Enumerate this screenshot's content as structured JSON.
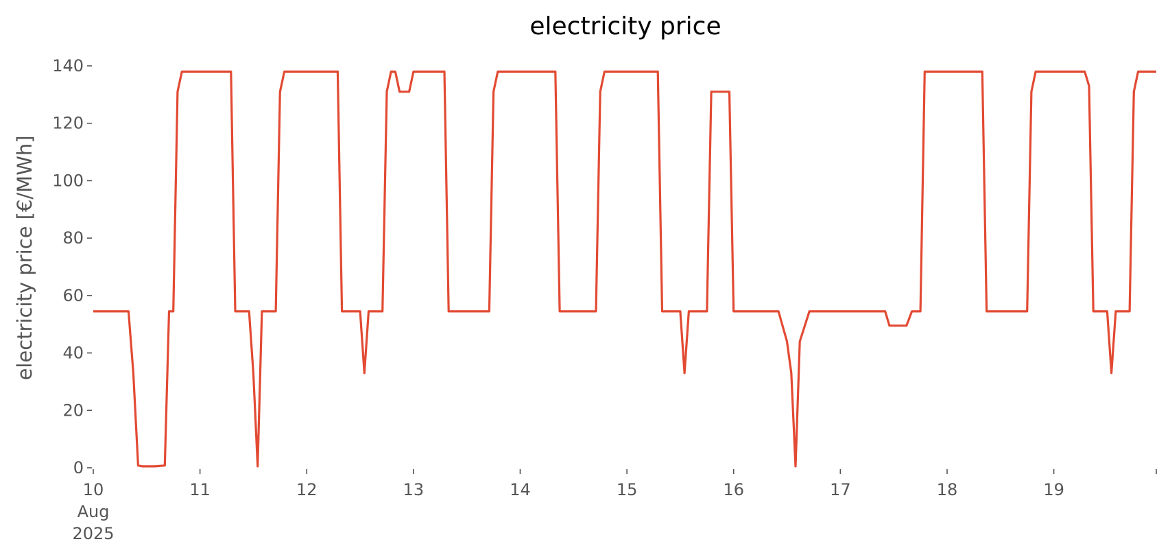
{
  "chart_data": {
    "type": "line",
    "title": "electricity price",
    "xlabel": "",
    "ylabel": "electricity price [€/MWh]",
    "x_unit": "day (August 2025, fractional)",
    "xlim": [
      10,
      19.96
    ],
    "ylim": [
      0,
      140
    ],
    "yticks": [
      0,
      20,
      40,
      60,
      80,
      100,
      120,
      140
    ],
    "xticks": [
      {
        "value": 10,
        "lines": [
          "10",
          "Aug",
          "2025"
        ]
      },
      {
        "value": 11,
        "lines": [
          "11"
        ]
      },
      {
        "value": 12,
        "lines": [
          "12"
        ]
      },
      {
        "value": 13,
        "lines": [
          "13"
        ]
      },
      {
        "value": 14,
        "lines": [
          "14"
        ]
      },
      {
        "value": 15,
        "lines": [
          "15"
        ]
      },
      {
        "value": 16,
        "lines": [
          "16"
        ]
      },
      {
        "value": 17,
        "lines": [
          "17"
        ]
      },
      {
        "value": 18,
        "lines": [
          "18"
        ]
      },
      {
        "value": 19,
        "lines": [
          "19"
        ]
      },
      {
        "value": 19.96,
        "lines": [
          ""
        ]
      }
    ],
    "grid": false,
    "series": [
      {
        "name": "",
        "color": "#e24a33",
        "points": [
          [
            10.0,
            54.5
          ],
          [
            10.33,
            54.5
          ],
          [
            10.375,
            33
          ],
          [
            10.42,
            0.8
          ],
          [
            10.46,
            0.5
          ],
          [
            10.58,
            0.5
          ],
          [
            10.67,
            0.8
          ],
          [
            10.71,
            54.5
          ],
          [
            10.75,
            54.5
          ],
          [
            10.79,
            131
          ],
          [
            10.83,
            138
          ],
          [
            11.29,
            138
          ],
          [
            11.33,
            54.5
          ],
          [
            11.46,
            54.5
          ],
          [
            11.5,
            33
          ],
          [
            11.54,
            0.5
          ],
          [
            11.58,
            54.5
          ],
          [
            11.71,
            54.5
          ],
          [
            11.75,
            131
          ],
          [
            11.79,
            138
          ],
          [
            12.29,
            138
          ],
          [
            12.33,
            54.5
          ],
          [
            12.5,
            54.5
          ],
          [
            12.54,
            33
          ],
          [
            12.58,
            54.5
          ],
          [
            12.71,
            54.5
          ],
          [
            12.75,
            131
          ],
          [
            12.79,
            138
          ],
          [
            12.83,
            138
          ],
          [
            12.87,
            131
          ],
          [
            12.96,
            131
          ],
          [
            13.0,
            138
          ],
          [
            13.29,
            138
          ],
          [
            13.33,
            54.5
          ],
          [
            13.71,
            54.5
          ],
          [
            13.75,
            131
          ],
          [
            13.79,
            138
          ],
          [
            14.33,
            138
          ],
          [
            14.37,
            54.5
          ],
          [
            14.71,
            54.5
          ],
          [
            14.75,
            131
          ],
          [
            14.79,
            138
          ],
          [
            15.29,
            138
          ],
          [
            15.33,
            54.5
          ],
          [
            15.5,
            54.5
          ],
          [
            15.54,
            33
          ],
          [
            15.58,
            54.5
          ],
          [
            15.75,
            54.5
          ],
          [
            15.79,
            131
          ],
          [
            15.96,
            131
          ],
          [
            16.0,
            54.5
          ],
          [
            16.42,
            54.5
          ],
          [
            16.5,
            44
          ],
          [
            16.54,
            33
          ],
          [
            16.58,
            0.5
          ],
          [
            16.62,
            44
          ],
          [
            16.71,
            54.5
          ],
          [
            17.42,
            54.5
          ],
          [
            17.46,
            49.5
          ],
          [
            17.62,
            49.5
          ],
          [
            17.67,
            54.5
          ],
          [
            17.75,
            54.5
          ],
          [
            17.79,
            138
          ],
          [
            18.33,
            138
          ],
          [
            18.37,
            54.5
          ],
          [
            18.75,
            54.5
          ],
          [
            18.79,
            131
          ],
          [
            18.83,
            138
          ],
          [
            19.29,
            138
          ],
          [
            19.33,
            133
          ],
          [
            19.37,
            54.5
          ],
          [
            19.5,
            54.5
          ],
          [
            19.54,
            33
          ],
          [
            19.58,
            54.5
          ],
          [
            19.71,
            54.5
          ],
          [
            19.75,
            131
          ],
          [
            19.79,
            138
          ],
          [
            19.96,
            138
          ]
        ]
      }
    ]
  }
}
